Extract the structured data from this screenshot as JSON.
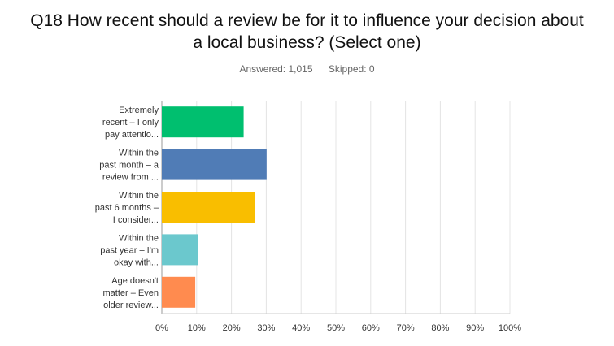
{
  "header": {
    "title_line1": "Q18 How recent should a review be for it to influence your decision about",
    "title_line2": "a local business? (Select one)",
    "answered": "Answered: 1,015",
    "skipped": "Skipped: 0"
  },
  "chart_data": {
    "type": "bar",
    "orientation": "horizontal",
    "categories": [
      [
        "Extremely",
        "recent – I only",
        "pay attentio..."
      ],
      [
        "Within the",
        "past month – a",
        "review from ..."
      ],
      [
        "Within the",
        "past 6 months –",
        "I consider..."
      ],
      [
        "Within the",
        "past year – I'm",
        "okay with..."
      ],
      [
        "Age doesn't",
        "matter – Even",
        "older review..."
      ]
    ],
    "values": [
      23.5,
      30.1,
      26.8,
      10.3,
      9.6
    ],
    "colors": [
      "#00BF6F",
      "#507CB6",
      "#F9BE00",
      "#6BC8CD",
      "#FF8B4F"
    ],
    "xlim": [
      0,
      100
    ],
    "ticks": [
      "0%",
      "10%",
      "20%",
      "30%",
      "40%",
      "50%",
      "60%",
      "70%",
      "80%",
      "90%",
      "100%"
    ],
    "grid": true
  }
}
